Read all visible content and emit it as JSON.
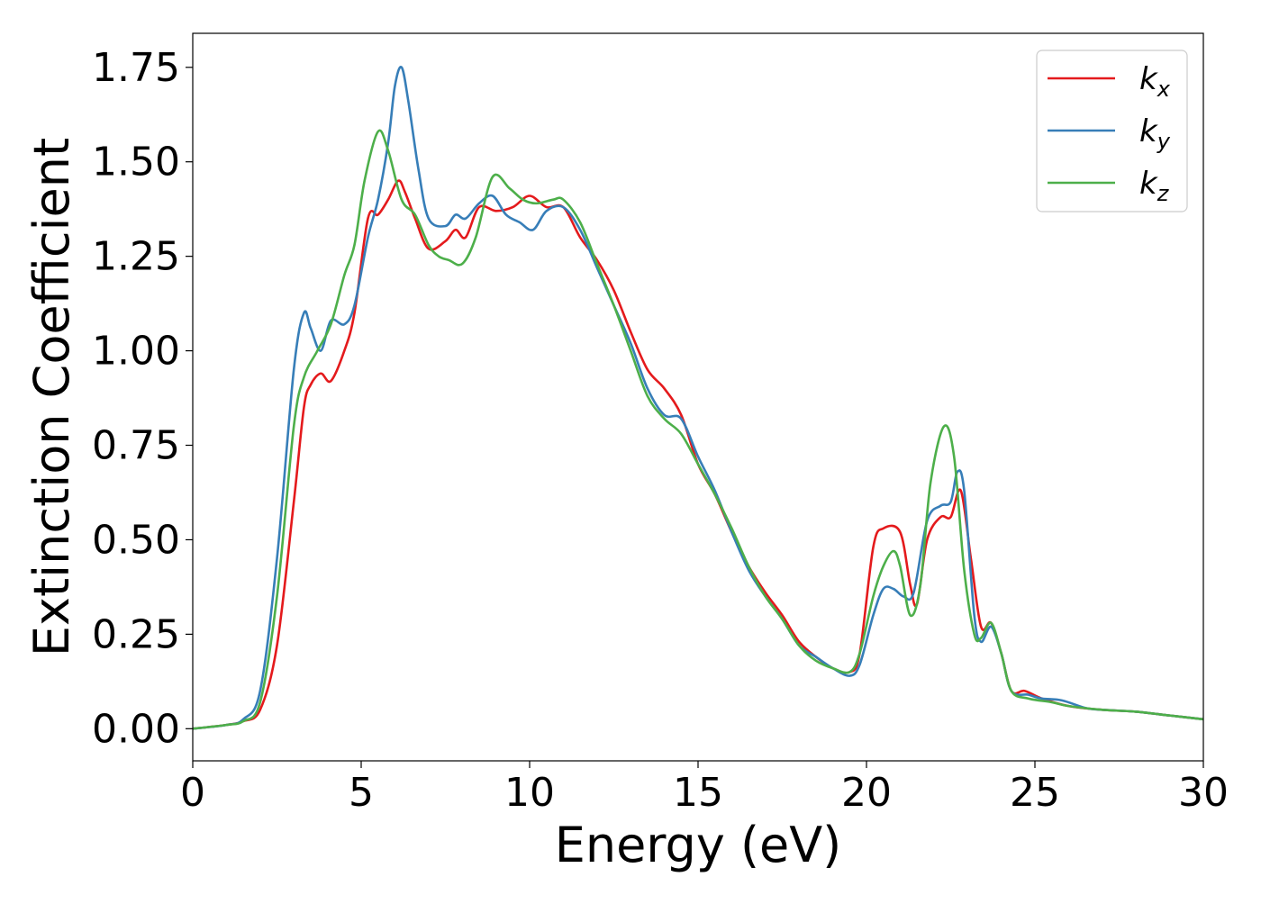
{
  "chart_data": {
    "type": "line",
    "title": "",
    "xlabel": "Energy (eV)",
    "ylabel": "Extinction Coefficient",
    "xlim": [
      0,
      30
    ],
    "ylim": [
      -0.085,
      1.84
    ],
    "xticks": [
      0,
      5,
      10,
      15,
      20,
      25,
      30
    ],
    "xtick_labels": [
      "0",
      "5",
      "10",
      "15",
      "20",
      "25",
      "30"
    ],
    "yticks": [
      0,
      0.25,
      0.5,
      0.75,
      1.0,
      1.25,
      1.5,
      1.75
    ],
    "ytick_labels": [
      "0.00",
      "0.25",
      "0.50",
      "0.75",
      "1.00",
      "1.25",
      "1.50",
      "1.75"
    ],
    "grid": false,
    "legend_position": "top-right",
    "series": [
      {
        "name": "k_x",
        "label_main": "k",
        "label_sub": "x",
        "color": "#e41a1c",
        "points": [
          [
            0,
            0.0
          ],
          [
            1,
            0.01
          ],
          [
            1.5,
            0.02
          ],
          [
            2,
            0.05
          ],
          [
            2.5,
            0.22
          ],
          [
            3,
            0.6
          ],
          [
            3.3,
            0.85
          ],
          [
            3.5,
            0.91
          ],
          [
            3.8,
            0.94
          ],
          [
            4.1,
            0.92
          ],
          [
            4.5,
            1.0
          ],
          [
            4.8,
            1.1
          ],
          [
            5.2,
            1.35
          ],
          [
            5.5,
            1.36
          ],
          [
            5.8,
            1.4
          ],
          [
            6.1,
            1.45
          ],
          [
            6.3,
            1.42
          ],
          [
            6.6,
            1.35
          ],
          [
            7.0,
            1.27
          ],
          [
            7.5,
            1.29
          ],
          [
            7.8,
            1.32
          ],
          [
            8.1,
            1.3
          ],
          [
            8.5,
            1.38
          ],
          [
            9.0,
            1.37
          ],
          [
            9.5,
            1.38
          ],
          [
            10,
            1.41
          ],
          [
            10.5,
            1.38
          ],
          [
            11,
            1.38
          ],
          [
            11.5,
            1.3
          ],
          [
            12,
            1.24
          ],
          [
            12.5,
            1.16
          ],
          [
            13,
            1.05
          ],
          [
            13.5,
            0.95
          ],
          [
            14,
            0.9
          ],
          [
            14.5,
            0.83
          ],
          [
            15,
            0.7
          ],
          [
            15.5,
            0.62
          ],
          [
            16,
            0.52
          ],
          [
            16.5,
            0.43
          ],
          [
            17,
            0.36
          ],
          [
            17.5,
            0.3
          ],
          [
            18,
            0.23
          ],
          [
            18.5,
            0.19
          ],
          [
            19,
            0.16
          ],
          [
            19.5,
            0.15
          ],
          [
            19.8,
            0.2
          ],
          [
            20.2,
            0.48
          ],
          [
            20.5,
            0.53
          ],
          [
            21,
            0.52
          ],
          [
            21.3,
            0.38
          ],
          [
            21.5,
            0.33
          ],
          [
            21.8,
            0.5
          ],
          [
            22.2,
            0.56
          ],
          [
            22.5,
            0.56
          ],
          [
            22.8,
            0.63
          ],
          [
            23.1,
            0.45
          ],
          [
            23.4,
            0.27
          ],
          [
            23.7,
            0.28
          ],
          [
            24.0,
            0.2
          ],
          [
            24.3,
            0.1
          ],
          [
            24.7,
            0.1
          ],
          [
            25.2,
            0.08
          ],
          [
            26,
            0.06
          ],
          [
            27,
            0.05
          ],
          [
            28,
            0.045
          ],
          [
            29,
            0.035
          ],
          [
            30,
            0.025
          ]
        ]
      },
      {
        "name": "k_y",
        "label_main": "k",
        "label_sub": "y",
        "color": "#377eb8",
        "points": [
          [
            0,
            0.0
          ],
          [
            1,
            0.01
          ],
          [
            1.5,
            0.025
          ],
          [
            2,
            0.1
          ],
          [
            2.5,
            0.45
          ],
          [
            3.0,
            0.95
          ],
          [
            3.3,
            1.1
          ],
          [
            3.5,
            1.06
          ],
          [
            3.8,
            1.0
          ],
          [
            4.1,
            1.08
          ],
          [
            4.5,
            1.07
          ],
          [
            4.8,
            1.12
          ],
          [
            5.2,
            1.3
          ],
          [
            5.5,
            1.4
          ],
          [
            5.8,
            1.55
          ],
          [
            6.0,
            1.7
          ],
          [
            6.2,
            1.75
          ],
          [
            6.4,
            1.66
          ],
          [
            6.7,
            1.48
          ],
          [
            7.0,
            1.35
          ],
          [
            7.5,
            1.33
          ],
          [
            7.8,
            1.36
          ],
          [
            8.1,
            1.35
          ],
          [
            8.5,
            1.39
          ],
          [
            8.9,
            1.41
          ],
          [
            9.3,
            1.36
          ],
          [
            9.7,
            1.34
          ],
          [
            10.1,
            1.32
          ],
          [
            10.5,
            1.37
          ],
          [
            11,
            1.38
          ],
          [
            11.5,
            1.32
          ],
          [
            12,
            1.22
          ],
          [
            12.5,
            1.12
          ],
          [
            13,
            1.02
          ],
          [
            13.5,
            0.9
          ],
          [
            14,
            0.83
          ],
          [
            14.5,
            0.82
          ],
          [
            15,
            0.72
          ],
          [
            15.5,
            0.63
          ],
          [
            16,
            0.52
          ],
          [
            16.5,
            0.42
          ],
          [
            17,
            0.35
          ],
          [
            17.5,
            0.29
          ],
          [
            18,
            0.22
          ],
          [
            18.5,
            0.19
          ],
          [
            19,
            0.16
          ],
          [
            19.5,
            0.14
          ],
          [
            19.8,
            0.17
          ],
          [
            20.2,
            0.3
          ],
          [
            20.5,
            0.37
          ],
          [
            20.8,
            0.37
          ],
          [
            21.1,
            0.35
          ],
          [
            21.4,
            0.36
          ],
          [
            21.8,
            0.55
          ],
          [
            22.2,
            0.59
          ],
          [
            22.5,
            0.6
          ],
          [
            22.7,
            0.68
          ],
          [
            22.9,
            0.63
          ],
          [
            23.2,
            0.3
          ],
          [
            23.4,
            0.23
          ],
          [
            23.7,
            0.27
          ],
          [
            24.0,
            0.2
          ],
          [
            24.3,
            0.1
          ],
          [
            24.8,
            0.09
          ],
          [
            25.2,
            0.08
          ],
          [
            25.8,
            0.075
          ],
          [
            26.5,
            0.055
          ],
          [
            27,
            0.05
          ],
          [
            28,
            0.045
          ],
          [
            29,
            0.035
          ],
          [
            30,
            0.025
          ]
        ]
      },
      {
        "name": "k_z",
        "label_main": "k",
        "label_sub": "z",
        "color": "#4daf4a",
        "points": [
          [
            0,
            0.0
          ],
          [
            1,
            0.01
          ],
          [
            1.5,
            0.02
          ],
          [
            2,
            0.07
          ],
          [
            2.5,
            0.35
          ],
          [
            3.0,
            0.8
          ],
          [
            3.3,
            0.93
          ],
          [
            3.7,
            1.0
          ],
          [
            4.1,
            1.07
          ],
          [
            4.5,
            1.2
          ],
          [
            4.8,
            1.28
          ],
          [
            5.1,
            1.45
          ],
          [
            5.5,
            1.58
          ],
          [
            5.8,
            1.53
          ],
          [
            6.2,
            1.4
          ],
          [
            6.6,
            1.36
          ],
          [
            7.0,
            1.28
          ],
          [
            7.3,
            1.25
          ],
          [
            7.6,
            1.24
          ],
          [
            8.0,
            1.23
          ],
          [
            8.4,
            1.3
          ],
          [
            8.9,
            1.46
          ],
          [
            9.4,
            1.43
          ],
          [
            9.8,
            1.4
          ],
          [
            10.2,
            1.39
          ],
          [
            10.7,
            1.4
          ],
          [
            11,
            1.4
          ],
          [
            11.5,
            1.34
          ],
          [
            12,
            1.23
          ],
          [
            12.5,
            1.12
          ],
          [
            13,
            1.0
          ],
          [
            13.5,
            0.88
          ],
          [
            14,
            0.82
          ],
          [
            14.5,
            0.78
          ],
          [
            15,
            0.7
          ],
          [
            15.5,
            0.62
          ],
          [
            16,
            0.53
          ],
          [
            16.5,
            0.43
          ],
          [
            17,
            0.35
          ],
          [
            17.5,
            0.29
          ],
          [
            18,
            0.22
          ],
          [
            18.5,
            0.18
          ],
          [
            19,
            0.16
          ],
          [
            19.5,
            0.15
          ],
          [
            19.8,
            0.2
          ],
          [
            20.2,
            0.35
          ],
          [
            20.5,
            0.43
          ],
          [
            20.8,
            0.47
          ],
          [
            21.0,
            0.43
          ],
          [
            21.3,
            0.3
          ],
          [
            21.6,
            0.38
          ],
          [
            21.9,
            0.65
          ],
          [
            22.3,
            0.8
          ],
          [
            22.6,
            0.72
          ],
          [
            22.9,
            0.42
          ],
          [
            23.2,
            0.25
          ],
          [
            23.4,
            0.24
          ],
          [
            23.7,
            0.28
          ],
          [
            24.0,
            0.2
          ],
          [
            24.3,
            0.1
          ],
          [
            24.8,
            0.08
          ],
          [
            25.5,
            0.07
          ],
          [
            26,
            0.06
          ],
          [
            27,
            0.05
          ],
          [
            28,
            0.045
          ],
          [
            29,
            0.035
          ],
          [
            30,
            0.025
          ]
        ]
      }
    ]
  }
}
